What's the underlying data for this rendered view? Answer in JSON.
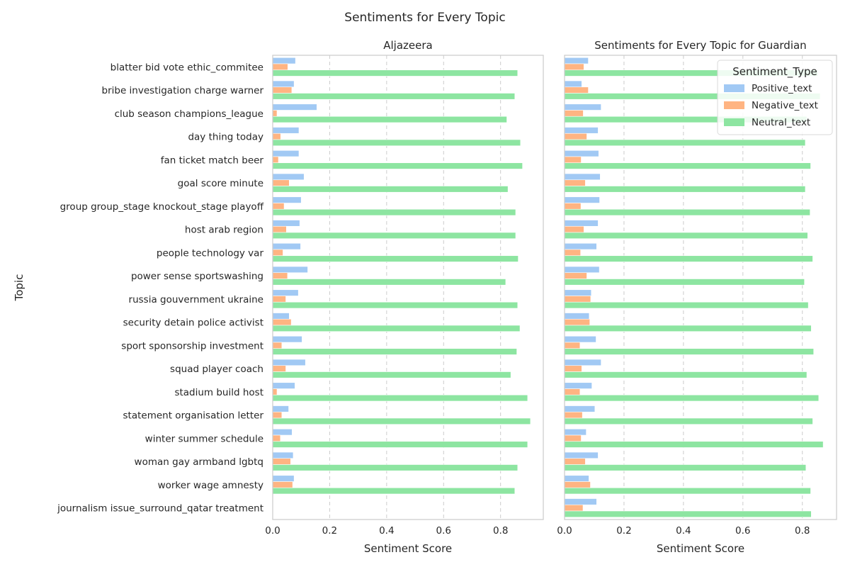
{
  "figure_title": "Sentiments for Every Topic",
  "chart_data": [
    {
      "type": "bar",
      "orientation": "horizontal",
      "title": "Aljazeera",
      "xlabel": "Sentiment Score",
      "ylabel": "Topic",
      "xlim": [
        0,
        0.95
      ],
      "xticks": [
        "0.0",
        "0.2",
        "0.4",
        "0.6",
        "0.8"
      ],
      "grid": "x, dashed",
      "categories": [
        "blatter bid vote ethic_commitee",
        "bribe investigation charge warner",
        "club season champions_league",
        "day thing today",
        "fan ticket match beer",
        "goal score minute",
        "group group_stage knockout_stage playoff",
        "host arab region",
        "people technology var",
        "power sense sportswashing",
        "russia gouvernment ukraine",
        "security detain police activist",
        "sport sponsorship investment",
        "squad player coach",
        "stadium build host",
        "statement organisation letter",
        "winter summer schedule",
        "woman gay armband lgbtq",
        "worker wage amnesty",
        "journalism issue_surround_qatar treatment"
      ],
      "series": [
        {
          "name": "Positive_text",
          "values": [
            0.08,
            0.075,
            0.155,
            0.092,
            0.092,
            0.11,
            0.1,
            0.095,
            0.098,
            0.123,
            0.09,
            0.058,
            0.103,
            0.115,
            0.078,
            0.056,
            0.068,
            0.072,
            0.075,
            null
          ]
        },
        {
          "name": "Negative_text",
          "values": [
            0.053,
            0.067,
            0.015,
            0.028,
            0.02,
            0.058,
            0.04,
            0.048,
            0.036,
            0.052,
            0.046,
            0.065,
            0.032,
            0.046,
            0.015,
            0.032,
            0.027,
            0.063,
            0.07,
            null
          ]
        },
        {
          "name": "Neutral_text",
          "values": [
            0.86,
            0.85,
            0.822,
            0.87,
            0.877,
            0.826,
            0.853,
            0.853,
            0.862,
            0.818,
            0.86,
            0.868,
            0.857,
            0.836,
            0.895,
            0.905,
            0.895,
            0.86,
            0.85,
            null
          ]
        }
      ]
    },
    {
      "type": "bar",
      "orientation": "horizontal",
      "title": "Sentiments for Every Topic for Guardian",
      "xlabel": "Sentiment Score",
      "ylabel": "",
      "xlim": [
        0,
        0.915
      ],
      "xticks": [
        "0.0",
        "0.2",
        "0.4",
        "0.6",
        "0.8"
      ],
      "grid": "x, dashed",
      "legend": {
        "title": "Sentiment_Type",
        "position": "upper right"
      },
      "series": [
        {
          "name": "Positive_text",
          "values": [
            0.08,
            0.058,
            0.123,
            0.113,
            0.115,
            0.12,
            0.118,
            0.113,
            0.108,
            0.117,
            0.09,
            0.083,
            0.106,
            0.123,
            0.092,
            0.102,
            0.073,
            0.113,
            0.082,
            0.108
          ]
        },
        {
          "name": "Negative_text",
          "values": [
            0.065,
            0.08,
            0.063,
            0.075,
            0.056,
            0.07,
            0.055,
            0.065,
            0.054,
            0.075,
            0.088,
            0.085,
            0.052,
            0.058,
            0.052,
            0.06,
            0.056,
            0.07,
            0.087,
            0.062
          ]
        },
        {
          "name": "Neutral_text",
          "values": [
            0.852,
            0.86,
            0.815,
            0.81,
            0.828,
            0.81,
            0.826,
            0.818,
            0.835,
            0.807,
            0.82,
            0.83,
            0.838,
            0.815,
            0.855,
            0.835,
            0.87,
            0.812,
            0.828,
            0.83
          ]
        }
      ]
    }
  ],
  "colors": {
    "Positive_text": "#a1c9f4",
    "Negative_text": "#ffb482",
    "Neutral_text": "#8de5a1",
    "grid": "#cccccc",
    "spine": "#cccccc",
    "text": "#262626"
  }
}
